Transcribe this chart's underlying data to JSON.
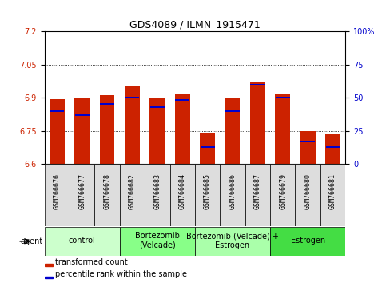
{
  "title": "GDS4089 / ILMN_1915471",
  "samples": [
    "GSM766676",
    "GSM766677",
    "GSM766678",
    "GSM766682",
    "GSM766683",
    "GSM766684",
    "GSM766685",
    "GSM766686",
    "GSM766687",
    "GSM766679",
    "GSM766680",
    "GSM766681"
  ],
  "transformed_count": [
    6.895,
    6.897,
    6.91,
    6.955,
    6.902,
    6.92,
    6.74,
    6.898,
    6.968,
    6.916,
    6.748,
    6.735
  ],
  "percentile_rank": [
    40,
    37,
    45,
    50,
    43,
    48,
    13,
    40,
    60,
    50,
    17,
    13
  ],
  "ylim_left": [
    6.6,
    7.2
  ],
  "ylim_right": [
    0,
    100
  ],
  "yticks_left": [
    6.6,
    6.75,
    6.9,
    7.05,
    7.2
  ],
  "yticks_right": [
    0,
    25,
    50,
    75,
    100
  ],
  "ytick_labels_left": [
    "6.6",
    "6.75",
    "6.9",
    "7.05",
    "7.2"
  ],
  "ytick_labels_right": [
    "0",
    "25",
    "50",
    "75",
    "100%"
  ],
  "bar_color": "#cc2200",
  "percentile_color": "#0000cc",
  "groups": [
    {
      "label": "control",
      "start": 0,
      "end": 3,
      "color": "#ccffcc"
    },
    {
      "label": "Bortezomib\n(Velcade)",
      "start": 3,
      "end": 6,
      "color": "#88ff88"
    },
    {
      "label": "Bortezomib (Velcade) +\nEstrogen",
      "start": 6,
      "end": 9,
      "color": "#aaffaa"
    },
    {
      "label": "Estrogen",
      "start": 9,
      "end": 12,
      "color": "#44dd44"
    }
  ],
  "group_row_label": "agent",
  "legend_items": [
    {
      "color": "#cc2200",
      "label": "transformed count"
    },
    {
      "color": "#0000cc",
      "label": "percentile rank within the sample"
    }
  ],
  "base_value": 6.6,
  "bar_width": 0.6,
  "sample_box_color": "#dddddd",
  "title_fontsize": 9,
  "tick_fontsize": 7,
  "sample_fontsize": 6,
  "group_fontsize": 7,
  "legend_fontsize": 7
}
